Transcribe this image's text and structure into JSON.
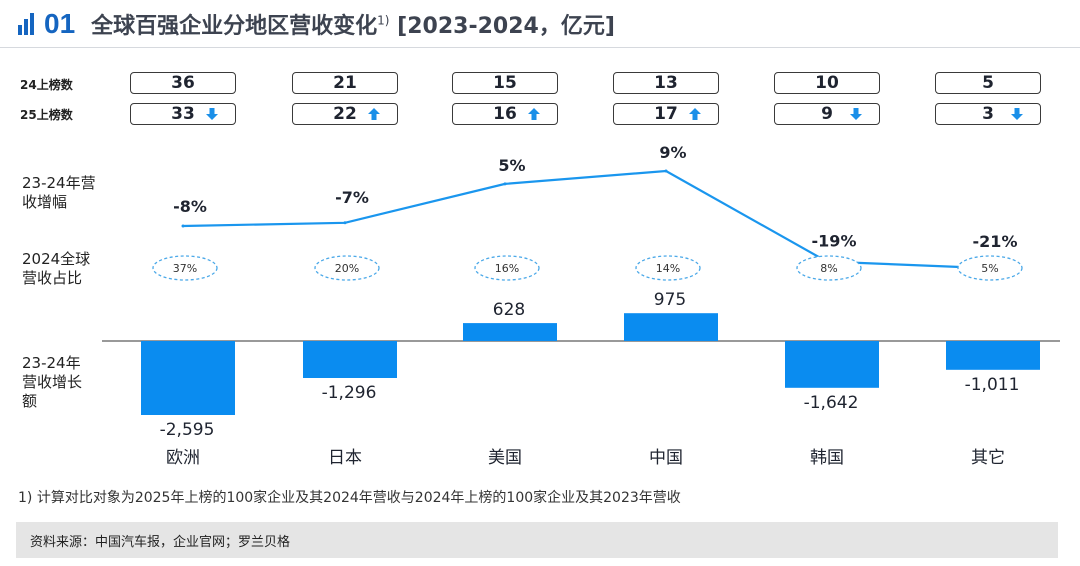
{
  "header": {
    "section_number": "01",
    "title": "全球百强企业分地区营收变化",
    "footnote_marker": "1)",
    "title_suffix": "[2023-2024，亿元]"
  },
  "row_labels": {
    "listed_24": "24上榜数",
    "listed_25": "25上榜数",
    "growth_rate": "23-24年营收增幅",
    "share": "2024全球营收占比",
    "growth_amount": "23-24年营收增长额"
  },
  "chart_data": {
    "type": "bar",
    "categories": [
      "欧洲",
      "日本",
      "美国",
      "中国",
      "韩国",
      "其它"
    ],
    "listed_24": [
      "36",
      "21",
      "15",
      "13",
      "10",
      "5"
    ],
    "listed_25": [
      "33",
      "22",
      "16",
      "17",
      "9",
      "3"
    ],
    "listed_25_direction": [
      "down",
      "up",
      "up",
      "up",
      "down",
      "down"
    ],
    "growth_rate": {
      "type": "line",
      "values": [
        -8,
        -7,
        5,
        9,
        -19,
        -21
      ],
      "labels": [
        "-8%",
        "-7%",
        "5%",
        "9%",
        "-19%",
        "-21%"
      ]
    },
    "share_2024": [
      "37%",
      "20%",
      "16%",
      "14%",
      "8%",
      "5%"
    ],
    "growth_amount": {
      "type": "bar",
      "values": [
        -2595,
        -1296,
        628,
        975,
        -1642,
        -1011
      ],
      "labels": [
        "-2,595",
        "-1,296",
        "628",
        "975",
        "-1,642",
        "-1,011"
      ]
    },
    "colors": {
      "accent": "#1a96ee",
      "bar": "#0a8cf0",
      "line": "#1a96ee",
      "ellipse": "#4aa8e8"
    }
  },
  "footnote": "1) 计算对比对象为2025年上榜的100家企业及其2024年营收与2024年上榜的100家企业及其2023年营收",
  "source": "资料来源：中国汽车报，企业官网；罗兰贝格"
}
